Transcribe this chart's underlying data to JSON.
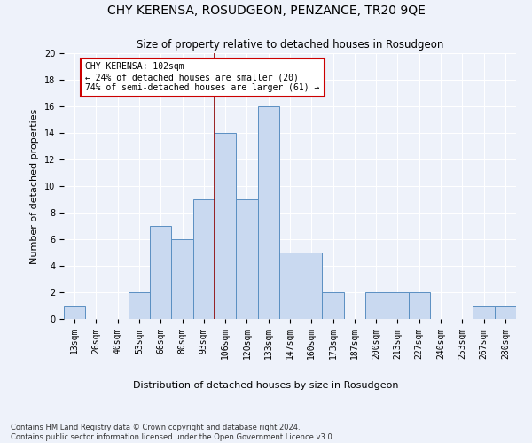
{
  "title": "CHY KERENSA, ROSUDGEON, PENZANCE, TR20 9QE",
  "subtitle": "Size of property relative to detached houses in Rosudgeon",
  "xlabel": "Distribution of detached houses by size in Rosudgeon",
  "ylabel": "Number of detached properties",
  "bar_labels": [
    "13sqm",
    "26sqm",
    "40sqm",
    "53sqm",
    "66sqm",
    "80sqm",
    "93sqm",
    "106sqm",
    "120sqm",
    "133sqm",
    "147sqm",
    "160sqm",
    "173sqm",
    "187sqm",
    "200sqm",
    "213sqm",
    "227sqm",
    "240sqm",
    "253sqm",
    "267sqm",
    "280sqm"
  ],
  "bar_values": [
    1,
    0,
    0,
    2,
    7,
    6,
    9,
    14,
    9,
    16,
    5,
    5,
    2,
    0,
    2,
    2,
    2,
    0,
    0,
    1,
    1
  ],
  "bar_color": "#c9d9f0",
  "bar_edge_color": "#5a8fc2",
  "vline_color": "#8b0000",
  "vline_bar_index": 7,
  "annotation_text": "CHY KERENSA: 102sqm\n← 24% of detached houses are smaller (20)\n74% of semi-detached houses are larger (61) →",
  "annotation_box_color": "#ffffff",
  "annotation_box_edge_color": "#cc0000",
  "ylim": [
    0,
    20
  ],
  "yticks": [
    0,
    2,
    4,
    6,
    8,
    10,
    12,
    14,
    16,
    18,
    20
  ],
  "footnote": "Contains HM Land Registry data © Crown copyright and database right 2024.\nContains public sector information licensed under the Open Government Licence v3.0.",
  "bg_color": "#eef2fa",
  "grid_color": "#ffffff",
  "title_fontsize": 10,
  "subtitle_fontsize": 8.5,
  "xlabel_fontsize": 8,
  "ylabel_fontsize": 8,
  "tick_fontsize": 7,
  "footnote_fontsize": 6,
  "annotation_fontsize": 7
}
